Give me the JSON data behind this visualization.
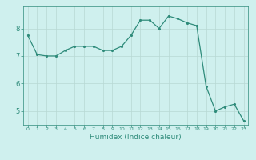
{
  "xlabel": "Humidex (Indice chaleur)",
  "ylabel": "",
  "x_values": [
    0,
    1,
    2,
    3,
    4,
    5,
    6,
    7,
    8,
    9,
    10,
    11,
    12,
    13,
    14,
    15,
    16,
    17,
    18,
    19,
    20,
    21,
    22,
    23
  ],
  "y_values": [
    7.75,
    7.05,
    7.0,
    7.0,
    7.2,
    7.35,
    7.35,
    7.35,
    7.2,
    7.2,
    7.35,
    7.75,
    8.3,
    8.3,
    8.0,
    8.45,
    8.35,
    8.2,
    8.1,
    5.9,
    5.0,
    5.15,
    5.25,
    4.65
  ],
  "line_color": "#2e8b7a",
  "marker_color": "#2e8b7a",
  "bg_color": "#cff0ee",
  "grid_color": "#b8d8d4",
  "ylim": [
    4.5,
    8.8
  ],
  "yticks": [
    5,
    6,
    7,
    8
  ],
  "xlim": [
    -0.5,
    23.5
  ]
}
